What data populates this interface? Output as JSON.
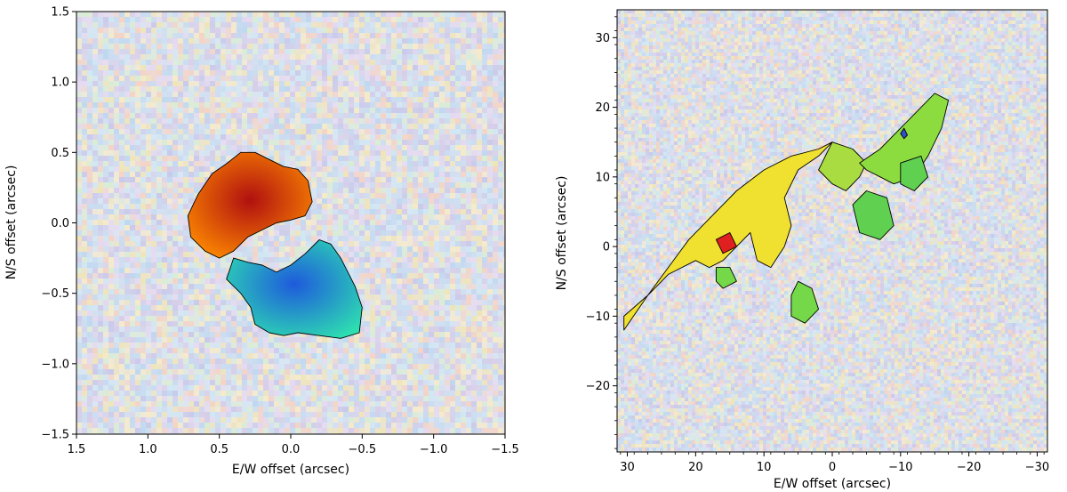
{
  "chart_data": [
    {
      "type": "heatmap",
      "title": "",
      "xlabel": "E/W offset (arcsec)",
      "ylabel": "N/S offset (arcsec)",
      "xlim": [
        1.5,
        -1.5
      ],
      "ylim": [
        -1.5,
        1.5
      ],
      "xticks": [
        1.5,
        1.0,
        0.5,
        0.0,
        -0.5,
        -1.0,
        -1.5
      ],
      "yticks": [
        -1.5,
        -1.0,
        -0.5,
        0.0,
        0.5,
        1.0,
        1.5
      ],
      "xtick_labels": [
        "1.5",
        "1.0",
        "0.5",
        "0.0",
        "−0.5",
        "−1.0",
        "−1.5"
      ],
      "ytick_labels": [
        "−1.5",
        "−1.0",
        "−0.5",
        "0.0",
        "0.5",
        "1.0",
        "1.5"
      ],
      "grid": false,
      "background_style": "faded noisy velocity map",
      "regions": [
        {
          "name": "redshifted-lobe",
          "color": "#b01010",
          "edge_color": "#ff8c00",
          "outline": [
            [
              0.65,
              0.2
            ],
            [
              0.55,
              0.35
            ],
            [
              0.45,
              0.42
            ],
            [
              0.35,
              0.5
            ],
            [
              0.25,
              0.5
            ],
            [
              0.15,
              0.45
            ],
            [
              0.05,
              0.4
            ],
            [
              -0.05,
              0.38
            ],
            [
              -0.12,
              0.3
            ],
            [
              -0.15,
              0.15
            ],
            [
              -0.1,
              0.05
            ],
            [
              0.0,
              0.02
            ],
            [
              0.1,
              0.0
            ],
            [
              0.2,
              -0.05
            ],
            [
              0.3,
              -0.1
            ],
            [
              0.4,
              -0.2
            ],
            [
              0.5,
              -0.25
            ],
            [
              0.6,
              -0.2
            ],
            [
              0.7,
              -0.1
            ],
            [
              0.72,
              0.05
            ]
          ]
        },
        {
          "name": "blueshifted-lobe",
          "color": "#1e5adc",
          "edge_color": "#2ee0b0",
          "outline": [
            [
              0.4,
              -0.25
            ],
            [
              0.3,
              -0.28
            ],
            [
              0.2,
              -0.3
            ],
            [
              0.1,
              -0.35
            ],
            [
              0.0,
              -0.3
            ],
            [
              -0.1,
              -0.22
            ],
            [
              -0.2,
              -0.12
            ],
            [
              -0.28,
              -0.15
            ],
            [
              -0.35,
              -0.25
            ],
            [
              -0.45,
              -0.45
            ],
            [
              -0.5,
              -0.6
            ],
            [
              -0.48,
              -0.78
            ],
            [
              -0.35,
              -0.82
            ],
            [
              -0.2,
              -0.8
            ],
            [
              -0.05,
              -0.78
            ],
            [
              0.05,
              -0.8
            ],
            [
              0.15,
              -0.78
            ],
            [
              0.25,
              -0.72
            ],
            [
              0.28,
              -0.6
            ],
            [
              0.35,
              -0.5
            ],
            [
              0.45,
              -0.4
            ]
          ]
        }
      ]
    },
    {
      "type": "heatmap",
      "title": "",
      "xlabel": "E/W offset (arcsec)",
      "ylabel": "N/S offset (arcsec)",
      "xlim": [
        31.5,
        -31.5
      ],
      "ylim": [
        -29.5,
        34
      ],
      "xticks": [
        30,
        20,
        10,
        0,
        -10,
        -20,
        -30
      ],
      "yticks": [
        -20,
        -10,
        0,
        10,
        20,
        30
      ],
      "xtick_labels": [
        "30",
        "20",
        "10",
        "0",
        "−10",
        "−20",
        "−30"
      ],
      "ytick_labels": [
        "−20",
        "−10",
        "0",
        "10",
        "20",
        "30"
      ],
      "grid": false,
      "background_style": "faded noisy velocity map",
      "regions": [
        {
          "name": "main-yellow-lane",
          "color": "#f0e030",
          "outline": [
            [
              30.5,
              -12
            ],
            [
              27,
              -7
            ],
            [
              24,
              -3
            ],
            [
              21,
              1
            ],
            [
              18,
              4
            ],
            [
              14,
              8
            ],
            [
              10,
              11
            ],
            [
              6,
              13
            ],
            [
              2,
              14
            ],
            [
              0,
              15
            ],
            [
              2,
              13
            ],
            [
              5,
              11
            ],
            [
              7,
              7
            ],
            [
              6,
              3
            ],
            [
              7,
              0
            ],
            [
              9,
              -3
            ],
            [
              11,
              -2
            ],
            [
              12,
              2
            ],
            [
              14,
              0
            ],
            [
              16,
              -2
            ],
            [
              18,
              -3
            ],
            [
              20,
              -2
            ],
            [
              24,
              -4
            ],
            [
              27,
              -7
            ],
            [
              30.5,
              -10
            ]
          ]
        },
        {
          "name": "green-wedge",
          "color": "#a8dc40",
          "outline": [
            [
              0,
              15
            ],
            [
              -3,
              14
            ],
            [
              -5,
              12
            ],
            [
              -4,
              10
            ],
            [
              -2,
              8
            ],
            [
              0,
              9
            ],
            [
              2,
              11
            ]
          ]
        },
        {
          "name": "green-arm",
          "color": "#8cdc40",
          "outline": [
            [
              -4,
              12
            ],
            [
              -7,
              14
            ],
            [
              -10,
              17
            ],
            [
              -13,
              20
            ],
            [
              -15,
              22
            ],
            [
              -17,
              21
            ],
            [
              -16,
              17
            ],
            [
              -14,
              13
            ],
            [
              -12,
              10
            ],
            [
              -9,
              9
            ],
            [
              -7,
              10
            ],
            [
              -5,
              11
            ]
          ]
        },
        {
          "name": "green-clump-1",
          "color": "#60d050",
          "outline": [
            [
              -3,
              6
            ],
            [
              -5,
              8
            ],
            [
              -8,
              7
            ],
            [
              -9,
              3
            ],
            [
              -7,
              1
            ],
            [
              -4,
              2
            ]
          ]
        },
        {
          "name": "green-clump-2",
          "color": "#60d050",
          "outline": [
            [
              -10,
              12
            ],
            [
              -13,
              13
            ],
            [
              -14,
              10
            ],
            [
              -12,
              8
            ],
            [
              -10,
              9
            ]
          ]
        },
        {
          "name": "green-blob-1",
          "color": "#74d848",
          "outline": [
            [
              5,
              -5
            ],
            [
              3,
              -6
            ],
            [
              2,
              -9
            ],
            [
              4,
              -11
            ],
            [
              6,
              -10
            ],
            [
              6,
              -7
            ]
          ]
        },
        {
          "name": "green-blob-2",
          "color": "#74d848",
          "outline": [
            [
              17,
              -3
            ],
            [
              15,
              -3
            ],
            [
              14,
              -5
            ],
            [
              16,
              -6
            ],
            [
              17,
              -5
            ]
          ]
        },
        {
          "name": "red-knot",
          "color": "#e02020",
          "outline": [
            [
              17,
              1
            ],
            [
              15,
              2
            ],
            [
              14,
              0
            ],
            [
              16,
              -1
            ]
          ]
        },
        {
          "name": "blue-knot",
          "color": "#3050d0",
          "outline": [
            [
              -10.5,
              17
            ],
            [
              -11,
              16
            ],
            [
              -10.5,
              15.5
            ],
            [
              -10,
              16.2
            ]
          ]
        }
      ]
    }
  ]
}
